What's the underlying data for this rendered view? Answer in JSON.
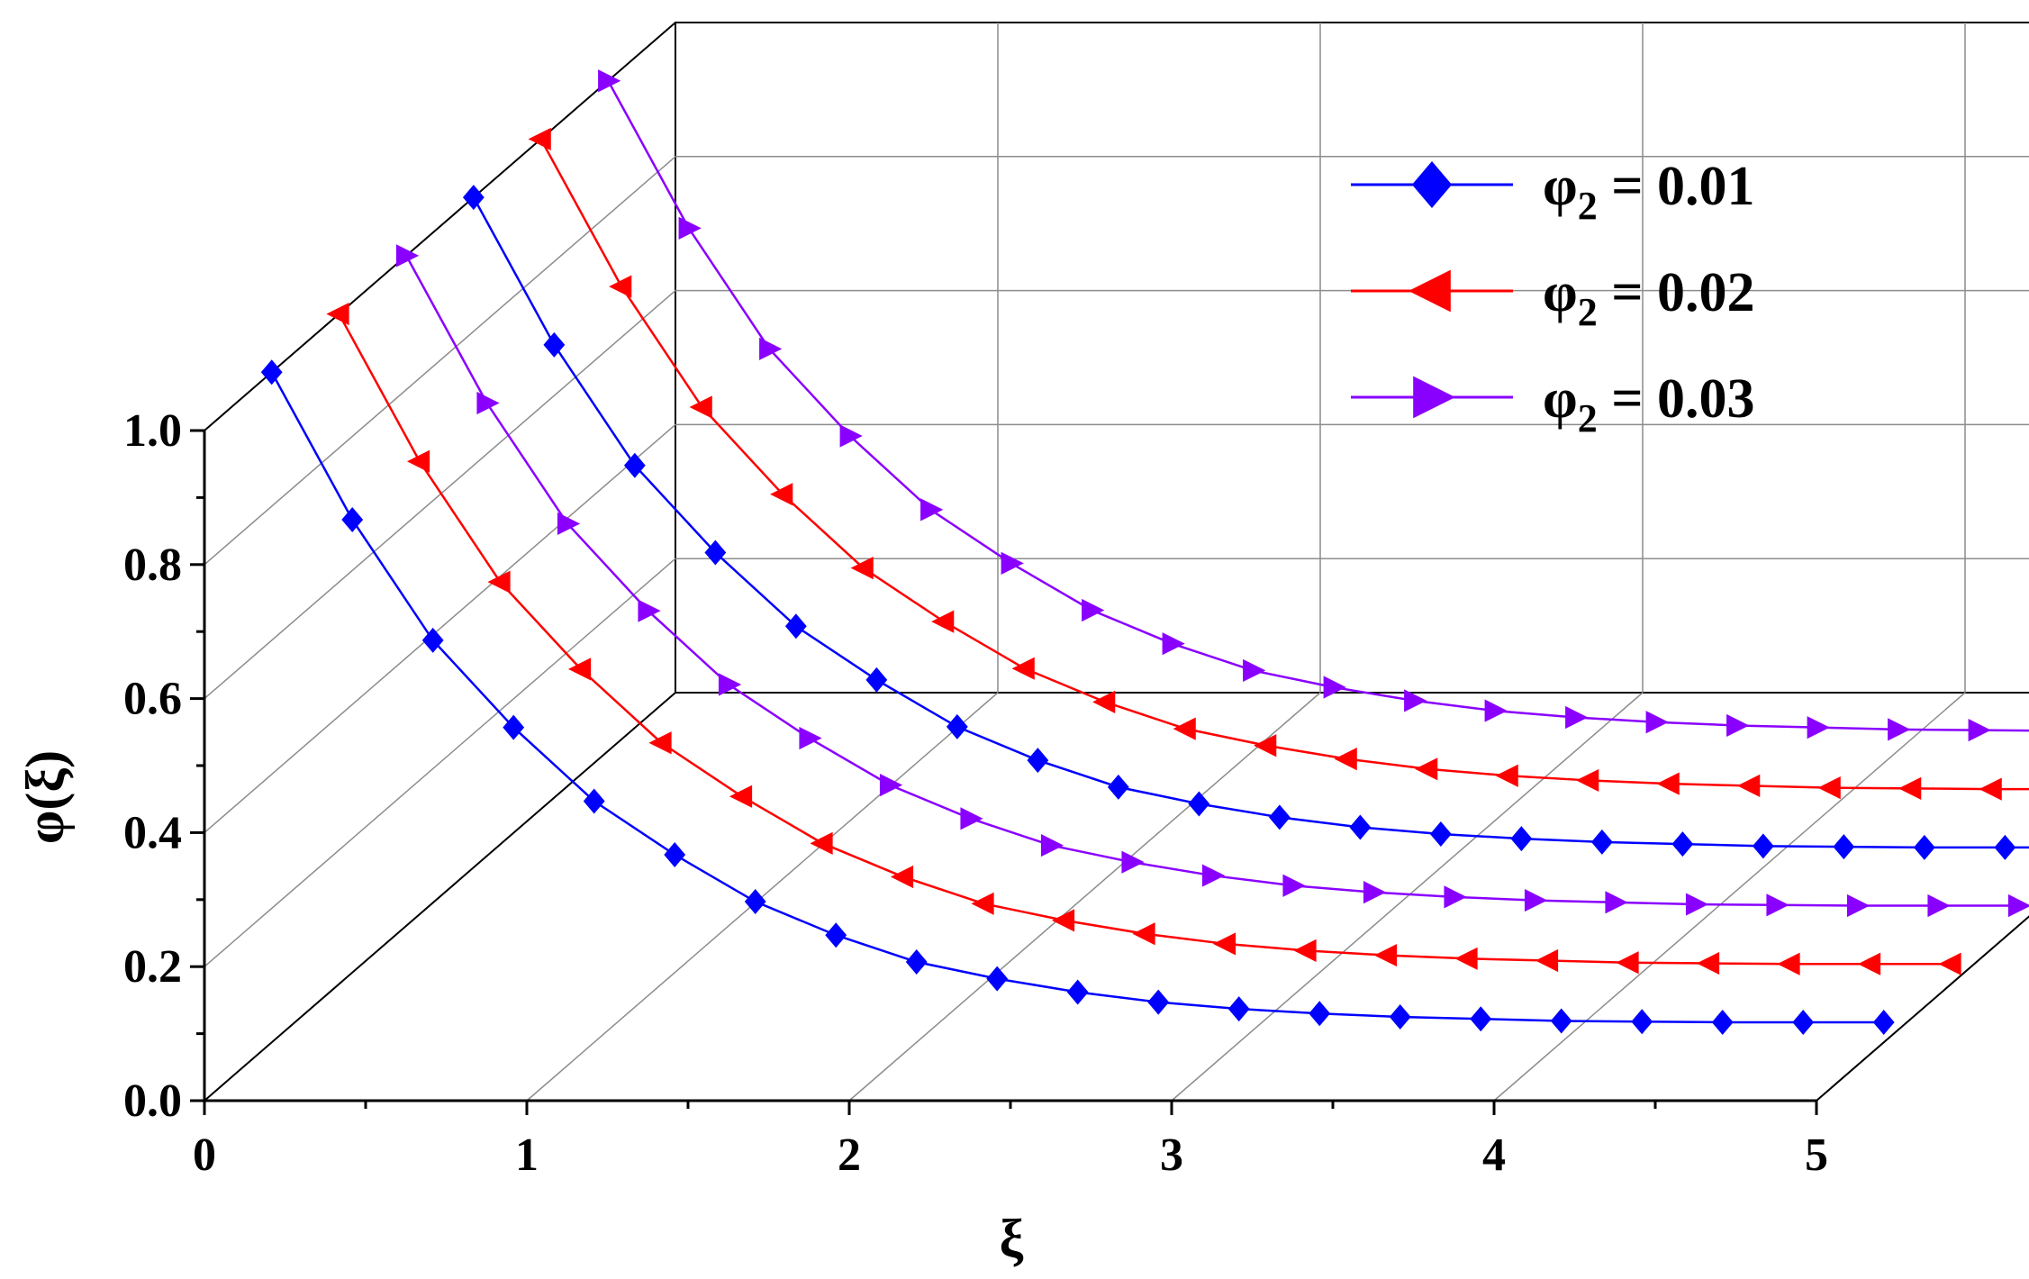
{
  "chart_data": {
    "type": "line",
    "title": "",
    "xlabel": "ξ",
    "ylabel": "φ(ξ)",
    "xlim": [
      0,
      5
    ],
    "ylim": [
      0,
      1.0
    ],
    "x_ticks": [
      "0",
      "1",
      "2",
      "3",
      "4",
      "5"
    ],
    "y_ticks": [
      "0.0",
      "0.2",
      "0.4",
      "0.6",
      "0.8",
      "1.0"
    ],
    "grid": true,
    "legend_position": "top-right",
    "x": [
      0.0,
      0.25,
      0.5,
      0.75,
      1.0,
      1.25,
      1.5,
      1.75,
      2.0,
      2.25,
      2.5,
      2.75,
      3.0,
      3.25,
      3.5,
      3.75,
      4.0,
      4.25,
      4.5,
      4.75,
      5.0
    ],
    "series": [
      {
        "name": "φ₂ = 0.01",
        "legend_prefix": "φ",
        "legend_sub": "2",
        "legend_value": " = 0.01",
        "color": "#0000ff",
        "marker": "diamond",
        "values": [
          1.0,
          0.78,
          0.6,
          0.47,
          0.36,
          0.28,
          0.21,
          0.16,
          0.12,
          0.095,
          0.075,
          0.06,
          0.05,
          0.043,
          0.038,
          0.035,
          0.032,
          0.031,
          0.03,
          0.03,
          0.03
        ]
      },
      {
        "name": "φ₂ = 0.02",
        "legend_prefix": "φ",
        "legend_sub": "2",
        "legend_value": " = 0.02",
        "color": "#ff0000",
        "marker": "triangle-left",
        "values": [
          1.0,
          0.78,
          0.6,
          0.47,
          0.36,
          0.28,
          0.21,
          0.16,
          0.12,
          0.095,
          0.075,
          0.06,
          0.05,
          0.043,
          0.038,
          0.035,
          0.032,
          0.031,
          0.03,
          0.03,
          0.03
        ]
      },
      {
        "name": "φ₂ = 0.03",
        "legend_prefix": "φ",
        "legend_sub": "2",
        "legend_value": " = 0.03",
        "color": "#8a00ff",
        "marker": "triangle-right",
        "values": [
          1.0,
          0.78,
          0.6,
          0.47,
          0.36,
          0.28,
          0.21,
          0.16,
          0.12,
          0.095,
          0.075,
          0.06,
          0.05,
          0.043,
          0.038,
          0.035,
          0.032,
          0.031,
          0.03,
          0.03,
          0.03
        ]
      }
    ]
  }
}
